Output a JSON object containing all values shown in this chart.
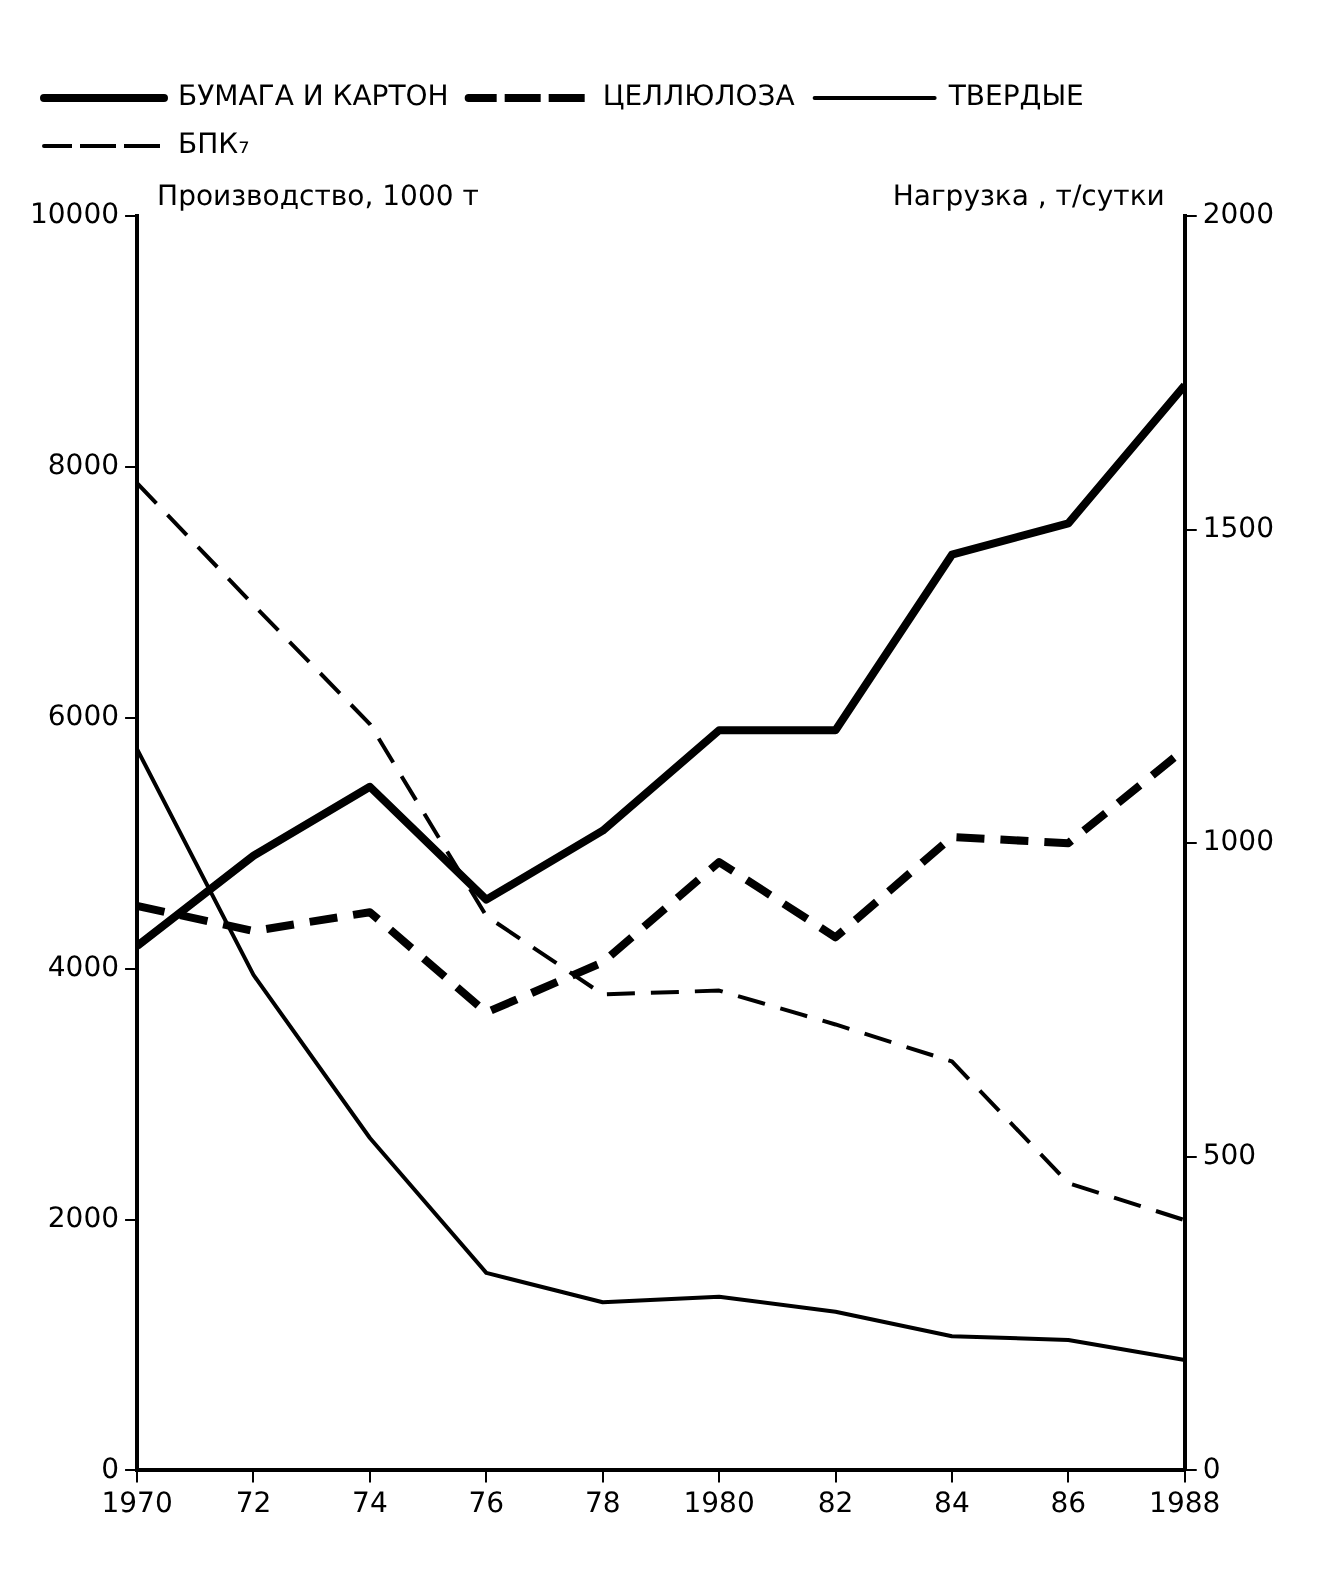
{
  "chart_data": {
    "type": "line",
    "ylabel": "Производство, 1000 т",
    "y2label": "Нагрузка , т/сутки",
    "x": [
      1970,
      1972,
      1974,
      1976,
      1978,
      1980,
      1982,
      1984,
      1986,
      1988
    ],
    "series": [
      {
        "name": "БУМАГА И КАРТОН",
        "color": "#000000",
        "line_style": "solid",
        "values": [
          4180,
          4900,
          5450,
          4550,
          5100,
          5900,
          5900,
          7300,
          7550,
          8650
        ]
      },
      {
        "name": "ЦЕЛЛЮЛОЗА",
        "color": "#000000",
        "line_style": "dashed",
        "values": [
          4500,
          4300,
          4450,
          3650,
          4050,
          4850,
          4250,
          5050,
          5000,
          5750
        ]
      },
      {
        "name": "ТВЕРДЫЕ",
        "color": "#000000",
        "line_style": "solid",
        "axis": "y2",
        "values": [
          1150,
          790,
          530,
          315,
          268,
          277,
          253,
          214,
          208,
          176
        ]
      },
      {
        "name": "БПК₇",
        "color": "#000000",
        "line_style": "dashed",
        "axis": "y2",
        "values": [
          1574,
          1380,
          1190,
          884,
          759,
          765,
          711,
          652,
          458,
          399
        ]
      }
    ],
    "xlim": [
      1970,
      1988
    ],
    "xticks": [
      1970,
      {
        "value": 1972,
        "label": "72"
      },
      {
        "value": 1974,
        "label": "74"
      },
      {
        "value": 1976,
        "label": "76"
      },
      {
        "value": 1978,
        "label": "78"
      },
      1980,
      {
        "value": 1982,
        "label": "82"
      },
      {
        "value": 1984,
        "label": "84"
      },
      {
        "value": 1986,
        "label": "86"
      },
      1988
    ],
    "ylim": [
      0,
      10000
    ],
    "yticks": [
      0,
      2000,
      4000,
      6000,
      8000,
      10000
    ],
    "y2lim": [
      0,
      2000
    ],
    "y2ticks": [
      0,
      500,
      1000,
      1500,
      2000
    ],
    "grid": false,
    "legend": "top",
    "marker": "none"
  }
}
